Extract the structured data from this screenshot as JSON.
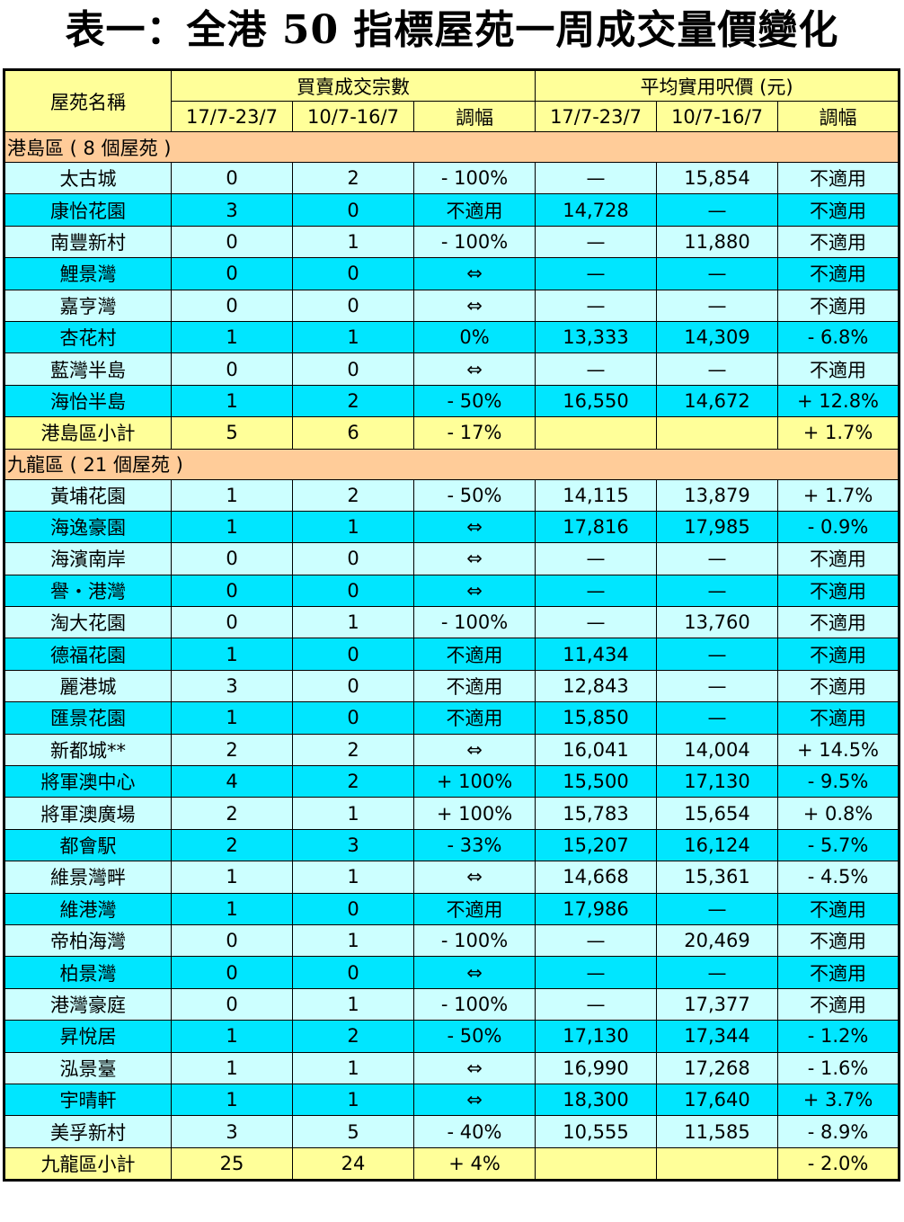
{
  "title": "表一：全港 50 指標屋苑一周成交量價變化",
  "header": {
    "estate_name": "屋苑名稱",
    "transactions_group": "買賣成交宗數",
    "price_group": "平均實用呎價 (元)",
    "week_current": "17/7-23/7",
    "week_previous": "10/7-16/7",
    "change": "調幅"
  },
  "sections": [
    {
      "district": "港島區 ( 8 個屋苑 )",
      "rows": [
        {
          "name": "太古城",
          "t_cur": "0",
          "t_prev": "2",
          "t_chg": "- 100%",
          "p_cur": "—",
          "p_prev": "15,854",
          "p_chg": "不適用"
        },
        {
          "name": "康怡花園",
          "t_cur": "3",
          "t_prev": "0",
          "t_chg": "不適用",
          "p_cur": "14,728",
          "p_prev": "—",
          "p_chg": "不適用"
        },
        {
          "name": "南豐新村",
          "t_cur": "0",
          "t_prev": "1",
          "t_chg": "- 100%",
          "p_cur": "—",
          "p_prev": "11,880",
          "p_chg": "不適用"
        },
        {
          "name": "鯉景灣",
          "t_cur": "0",
          "t_prev": "0",
          "t_chg": "⇔",
          "p_cur": "—",
          "p_prev": "—",
          "p_chg": "不適用"
        },
        {
          "name": "嘉亨灣",
          "t_cur": "0",
          "t_prev": "0",
          "t_chg": "⇔",
          "p_cur": "—",
          "p_prev": "—",
          "p_chg": "不適用"
        },
        {
          "name": "杏花村",
          "t_cur": "1",
          "t_prev": "1",
          "t_chg": "0%",
          "p_cur": "13,333",
          "p_prev": "14,309",
          "p_chg": "- 6.8%"
        },
        {
          "name": "藍灣半島",
          "t_cur": "0",
          "t_prev": "0",
          "t_chg": "⇔",
          "p_cur": "—",
          "p_prev": "—",
          "p_chg": "不適用"
        },
        {
          "name": "海怡半島",
          "t_cur": "1",
          "t_prev": "2",
          "t_chg": "- 50%",
          "p_cur": "16,550",
          "p_prev": "14,672",
          "p_chg": "+ 12.8%"
        }
      ],
      "subtotal": {
        "name": "港島區小計",
        "t_cur": "5",
        "t_prev": "6",
        "t_chg": "- 17%",
        "p_cur": "",
        "p_prev": "",
        "p_chg": "+ 1.7%"
      }
    },
    {
      "district": "九龍區 ( 21 個屋苑 )",
      "rows": [
        {
          "name": "黃埔花園",
          "t_cur": "1",
          "t_prev": "2",
          "t_chg": "- 50%",
          "p_cur": "14,115",
          "p_prev": "13,879",
          "p_chg": "+ 1.7%"
        },
        {
          "name": "海逸豪園",
          "t_cur": "1",
          "t_prev": "1",
          "t_chg": "⇔",
          "p_cur": "17,816",
          "p_prev": "17,985",
          "p_chg": "- 0.9%"
        },
        {
          "name": "海濱南岸",
          "t_cur": "0",
          "t_prev": "0",
          "t_chg": "⇔",
          "p_cur": "—",
          "p_prev": "—",
          "p_chg": "不適用"
        },
        {
          "name": "譽・港灣",
          "t_cur": "0",
          "t_prev": "0",
          "t_chg": "⇔",
          "p_cur": "—",
          "p_prev": "—",
          "p_chg": "不適用"
        },
        {
          "name": "淘大花園",
          "t_cur": "0",
          "t_prev": "1",
          "t_chg": "- 100%",
          "p_cur": "—",
          "p_prev": "13,760",
          "p_chg": "不適用"
        },
        {
          "name": "德福花園",
          "t_cur": "1",
          "t_prev": "0",
          "t_chg": "不適用",
          "p_cur": "11,434",
          "p_prev": "—",
          "p_chg": "不適用"
        },
        {
          "name": "麗港城",
          "t_cur": "3",
          "t_prev": "0",
          "t_chg": "不適用",
          "p_cur": "12,843",
          "p_prev": "—",
          "p_chg": "不適用"
        },
        {
          "name": "匯景花園",
          "t_cur": "1",
          "t_prev": "0",
          "t_chg": "不適用",
          "p_cur": "15,850",
          "p_prev": "—",
          "p_chg": "不適用"
        },
        {
          "name": "新都城**",
          "t_cur": "2",
          "t_prev": "2",
          "t_chg": "⇔",
          "p_cur": "16,041",
          "p_prev": "14,004",
          "p_chg": "+ 14.5%"
        },
        {
          "name": "將軍澳中心",
          "t_cur": "4",
          "t_prev": "2",
          "t_chg": "+ 100%",
          "p_cur": "15,500",
          "p_prev": "17,130",
          "p_chg": "- 9.5%"
        },
        {
          "name": "將軍澳廣場",
          "t_cur": "2",
          "t_prev": "1",
          "t_chg": "+ 100%",
          "p_cur": "15,783",
          "p_prev": "15,654",
          "p_chg": "+ 0.8%"
        },
        {
          "name": "都會駅",
          "t_cur": "2",
          "t_prev": "3",
          "t_chg": "- 33%",
          "p_cur": "15,207",
          "p_prev": "16,124",
          "p_chg": "- 5.7%"
        },
        {
          "name": "維景灣畔",
          "t_cur": "1",
          "t_prev": "1",
          "t_chg": "⇔",
          "p_cur": "14,668",
          "p_prev": "15,361",
          "p_chg": "- 4.5%"
        },
        {
          "name": "維港灣",
          "t_cur": "1",
          "t_prev": "0",
          "t_chg": "不適用",
          "p_cur": "17,986",
          "p_prev": "—",
          "p_chg": "不適用"
        },
        {
          "name": "帝柏海灣",
          "t_cur": "0",
          "t_prev": "1",
          "t_chg": "- 100%",
          "p_cur": "—",
          "p_prev": "20,469",
          "p_chg": "不適用"
        },
        {
          "name": "柏景灣",
          "t_cur": "0",
          "t_prev": "0",
          "t_chg": "⇔",
          "p_cur": "—",
          "p_prev": "—",
          "p_chg": "不適用"
        },
        {
          "name": "港灣豪庭",
          "t_cur": "0",
          "t_prev": "1",
          "t_chg": "- 100%",
          "p_cur": "—",
          "p_prev": "17,377",
          "p_chg": "不適用"
        },
        {
          "name": "昇悅居",
          "t_cur": "1",
          "t_prev": "2",
          "t_chg": "- 50%",
          "p_cur": "17,130",
          "p_prev": "17,344",
          "p_chg": "- 1.2%"
        },
        {
          "name": "泓景臺",
          "t_cur": "1",
          "t_prev": "1",
          "t_chg": "⇔",
          "p_cur": "16,990",
          "p_prev": "17,268",
          "p_chg": "- 1.6%"
        },
        {
          "name": "宇晴軒",
          "t_cur": "1",
          "t_prev": "1",
          "t_chg": "⇔",
          "p_cur": "18,300",
          "p_prev": "17,640",
          "p_chg": "+ 3.7%"
        },
        {
          "name": "美孚新村",
          "t_cur": "3",
          "t_prev": "5",
          "t_chg": "- 40%",
          "p_cur": "10,555",
          "p_prev": "11,585",
          "p_chg": "- 8.9%"
        }
      ],
      "subtotal": {
        "name": "九龍區小計",
        "t_cur": "25",
        "t_prev": "24",
        "t_chg": "+ 4%",
        "p_cur": "",
        "p_prev": "",
        "p_chg": "- 2.0%"
      }
    }
  ]
}
